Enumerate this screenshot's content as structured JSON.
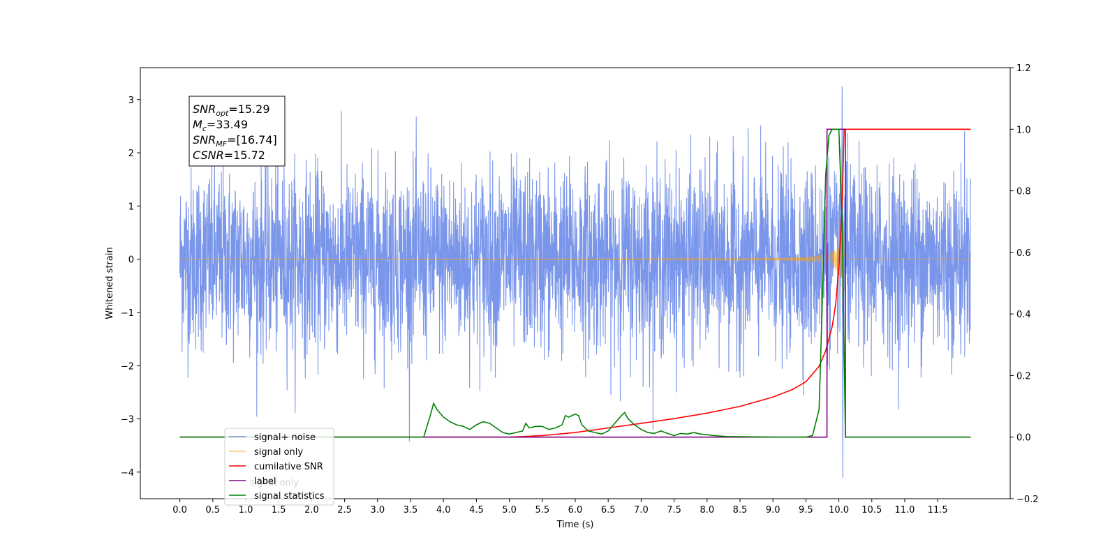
{
  "chart_data": {
    "type": "line",
    "xlabel": "Time (s)",
    "ylabel_left": "Whitened strain",
    "ylabel_right": "",
    "xlim": [
      -0.6,
      12.6
    ],
    "ylim_left": [
      -4.5,
      3.6
    ],
    "ylim_right": [
      -0.2,
      1.2
    ],
    "x_ticks": [
      0.0,
      0.5,
      1.0,
      1.5,
      2.0,
      2.5,
      3.0,
      3.5,
      4.0,
      4.5,
      5.0,
      5.5,
      6.0,
      6.5,
      7.0,
      7.5,
      8.0,
      8.5,
      9.0,
      9.5,
      10.0,
      10.5,
      11.0,
      11.5
    ],
    "x_tick_labels": [
      "0.0",
      "0.5",
      "1.0",
      "1.5",
      "2.0",
      "2.5",
      "3.0",
      "3.5",
      "4.0",
      "4.5",
      "5.0",
      "5.5",
      "6.0",
      "6.5",
      "7.0",
      "7.5",
      "8.0",
      "8.5",
      "9.0",
      "9.5",
      "10.0",
      "10.5",
      "11.0",
      "11.5"
    ],
    "y_ticks_left": [
      -4,
      -3,
      -2,
      -1,
      0,
      1,
      2,
      3
    ],
    "y_tick_labels_left": [
      "−4",
      "−3",
      "−2",
      "−1",
      "0",
      "1",
      "2",
      "3"
    ],
    "y_ticks_right": [
      -0.2,
      0.0,
      0.2,
      0.4,
      0.6,
      0.8,
      1.0,
      1.2
    ],
    "y_tick_labels_right": [
      "−0.2",
      "0.0",
      "0.2",
      "0.4",
      "0.6",
      "0.8",
      "1.0",
      "1.2"
    ],
    "grid": false,
    "legend_placement": "lower-left",
    "series": [
      {
        "name": "signal+ noise",
        "color": "#4169e1",
        "axis": "left",
        "style": "noise",
        "time_range": [
          0.0,
          12.0
        ],
        "std": 0.85,
        "peak_value": 3.25,
        "trough_value": -4.1
      },
      {
        "name": "signal only",
        "color": "#ffa500",
        "axis": "left",
        "style": "chirp",
        "time_range": [
          0.0,
          12.0
        ],
        "merger_time": 10.08,
        "peak_amplitude": 1.2
      },
      {
        "name": "cumilative SNR",
        "color": "#ff0000",
        "axis": "right",
        "x": [
          0.0,
          5.0,
          5.5,
          6.0,
          6.5,
          7.0,
          7.5,
          8.0,
          8.5,
          9.0,
          9.3,
          9.5,
          9.7,
          9.8,
          9.9,
          9.95,
          10.0,
          10.05,
          10.08,
          10.1,
          12.0
        ],
        "y": [
          0.0,
          0.0,
          0.005,
          0.015,
          0.03,
          0.045,
          0.06,
          0.078,
          0.1,
          0.13,
          0.155,
          0.18,
          0.23,
          0.28,
          0.36,
          0.43,
          0.55,
          0.75,
          1.0,
          1.0,
          1.0
        ]
      },
      {
        "name": "label",
        "color": "#800080",
        "axis": "right",
        "x": [
          0.0,
          9.82,
          9.82,
          10.1,
          10.1,
          12.0
        ],
        "y": [
          0.0,
          0.0,
          1.0,
          1.0,
          0.0,
          0.0
        ]
      },
      {
        "name": "signal statistics",
        "color": "#008000",
        "axis": "right",
        "x": [
          0.0,
          3.7,
          3.8,
          3.85,
          3.9,
          4.0,
          4.1,
          4.2,
          4.3,
          4.4,
          4.5,
          4.6,
          4.7,
          4.8,
          4.9,
          5.0,
          5.1,
          5.2,
          5.25,
          5.3,
          5.4,
          5.5,
          5.6,
          5.7,
          5.8,
          5.85,
          5.9,
          6.0,
          6.05,
          6.1,
          6.2,
          6.3,
          6.4,
          6.5,
          6.6,
          6.7,
          6.75,
          6.8,
          6.9,
          7.0,
          7.1,
          7.2,
          7.3,
          7.4,
          7.5,
          7.6,
          7.7,
          7.8,
          7.9,
          8.0,
          8.1,
          8.3,
          9.0,
          9.5,
          9.6,
          9.7,
          9.75,
          9.8,
          9.85,
          9.9,
          10.0,
          10.05,
          10.1,
          10.15,
          12.0
        ],
        "y": [
          0.0,
          0.0,
          0.07,
          0.11,
          0.09,
          0.065,
          0.05,
          0.04,
          0.035,
          0.025,
          0.04,
          0.05,
          0.045,
          0.03,
          0.015,
          0.01,
          0.015,
          0.02,
          0.045,
          0.03,
          0.035,
          0.035,
          0.025,
          0.03,
          0.04,
          0.07,
          0.065,
          0.075,
          0.07,
          0.04,
          0.02,
          0.015,
          0.01,
          0.02,
          0.045,
          0.07,
          0.08,
          0.06,
          0.04,
          0.025,
          0.015,
          0.012,
          0.02,
          0.012,
          0.005,
          0.012,
          0.01,
          0.015,
          0.01,
          0.008,
          0.005,
          0.002,
          0.0,
          0.0,
          0.005,
          0.09,
          0.45,
          0.85,
          0.98,
          1.0,
          1.0,
          0.7,
          0.0,
          0.0,
          0.0
        ]
      }
    ],
    "annotation": {
      "lines": [
        {
          "sym": "SNR",
          "sub": "opt",
          "rest": "=15.29"
        },
        {
          "sym": "M",
          "sub": "c",
          "rest": "=33.49"
        },
        {
          "sym": "SNR",
          "sub": "MF",
          "rest": "=[16.74]"
        },
        {
          "sym": "CSNR",
          "sub": "",
          "rest": "=15.72"
        }
      ]
    },
    "legend_overlay_text": "signal only"
  }
}
